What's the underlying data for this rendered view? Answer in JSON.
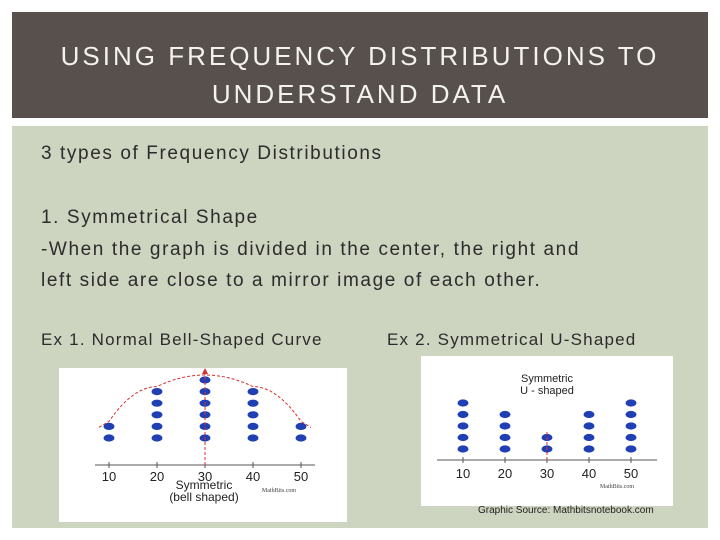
{
  "slide": {
    "title": "USING FREQUENCY DISTRIBUTIONS TO\nUNDERSTAND DATA",
    "intro": "3 types of Frequency Distributions",
    "item_heading": "1. Symmetrical Shape",
    "description_line1": "-When the graph is divided in the center, the right and",
    "description_line2": "left side are close to a mirror image of each other.",
    "example1_label": "Ex 1. Normal Bell-Shaped Curve",
    "example2_label": "Ex 2. Symmetrical U-Shaped",
    "source": "Graphic Source: Mathbitsnotebook.com"
  },
  "colors": {
    "title_bg": "#58504c",
    "title_text": "#f4f2ef",
    "content_bg": "#cdd4bf",
    "dot": "#1f3fb3",
    "curve": "#d9312b"
  },
  "chart_data": [
    {
      "type": "scatter",
      "categories": [
        "10",
        "20",
        "30",
        "40",
        "50"
      ],
      "values": [
        2,
        5,
        6,
        5,
        2
      ],
      "annotation_line1": "Symmetric",
      "annotation_line2": "(bell shaped)",
      "watermark": "MathBits.com"
    },
    {
      "type": "scatter",
      "categories": [
        "10",
        "20",
        "30",
        "40",
        "50"
      ],
      "values": [
        5,
        4,
        2,
        4,
        5
      ],
      "annotation_line1": "Symmetric",
      "annotation_line2": "U - shaped",
      "watermark": "MathBits.com"
    }
  ]
}
